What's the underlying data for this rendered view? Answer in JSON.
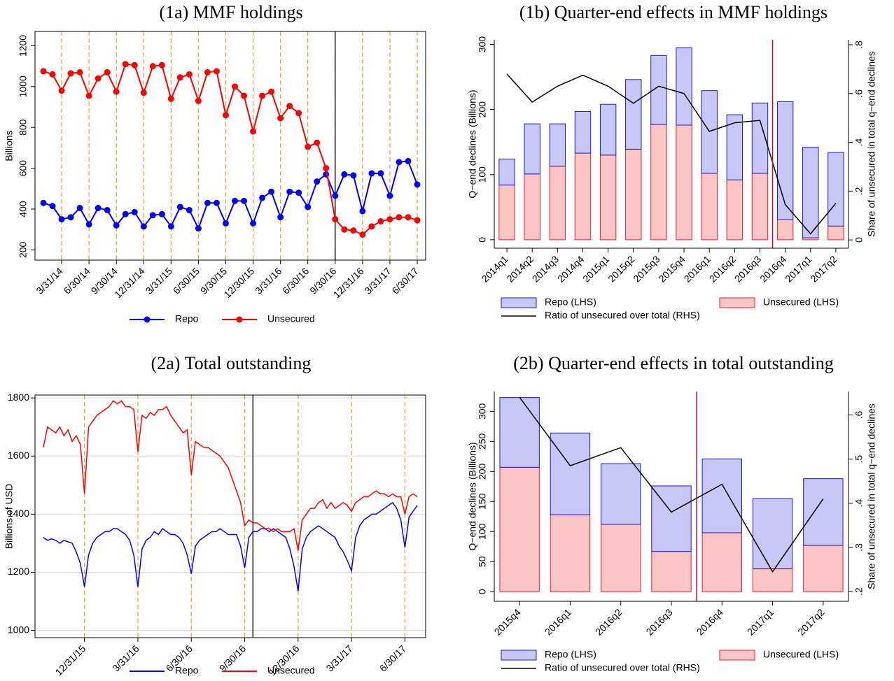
{
  "chart_data": [
    {
      "type": "line",
      "title": "(1a) MMF holdings",
      "ylabel": "Billions",
      "categories": [
        null,
        null,
        "3/31/14",
        null,
        null,
        "6/30/14",
        null,
        null,
        "9/30/14",
        null,
        null,
        "12/31/14",
        null,
        null,
        "3/31/15",
        null,
        null,
        "6/30/15",
        null,
        null,
        "9/30/15",
        null,
        null,
        "12/30/15",
        null,
        null,
        "3/31/16",
        null,
        null,
        "6/30/16",
        null,
        null,
        "9/30/16",
        null,
        null,
        "12/31/16",
        null,
        null,
        "3/31/17",
        null,
        null,
        "6/30/17"
      ],
      "series": [
        {
          "name": "Repo",
          "color": "#0000ff",
          "values": [
            430,
            415,
            350,
            360,
            405,
            325,
            405,
            395,
            320,
            375,
            385,
            315,
            370,
            375,
            315,
            410,
            395,
            305,
            430,
            430,
            330,
            440,
            440,
            330,
            455,
            485,
            360,
            485,
            480,
            410,
            535,
            570,
            465,
            570,
            565,
            390,
            575,
            575,
            465,
            630,
            635,
            520
          ]
        },
        {
          "name": "Unsecured",
          "color": "#ff0000",
          "values": [
            1075,
            1060,
            980,
            1065,
            1070,
            955,
            1040,
            1070,
            975,
            1110,
            1105,
            970,
            1100,
            1105,
            940,
            1045,
            1060,
            930,
            1070,
            1075,
            860,
            1000,
            955,
            780,
            955,
            975,
            845,
            905,
            870,
            705,
            725,
            600,
            350,
            300,
            295,
            275,
            315,
            340,
            350,
            360,
            360,
            345
          ]
        }
      ],
      "ylim": [
        150,
        1270
      ],
      "yticks": [
        200,
        400,
        600,
        800,
        1000,
        1200
      ],
      "grid": false,
      "markers": true,
      "category_lines": {
        "color": "#d9a93a"
      },
      "vline": {
        "index": 32,
        "color": "#000000"
      }
    },
    {
      "type": "bar",
      "title": "(1b) Quarter-end effects in MMF holdings",
      "ylabel": "Q−end declines (Billions)",
      "y2label": "Share of unsecured in total q−end declines",
      "categories": [
        "2014q1",
        "2014q2",
        "2014q3",
        "2014q4",
        "2015q1",
        "2015q2",
        "2015q3",
        "2015q4",
        "2016q1",
        "2016q2",
        "2016q3",
        "2016q4",
        "2017q1",
        "2017q2"
      ],
      "series": [
        {
          "name": "Repo (LHS)",
          "color": "#c8c8f8",
          "edge": "#1a1acc",
          "values": [
            40,
            77,
            65,
            64,
            78,
            107,
            106,
            119,
            127,
            100,
            108,
            181,
            139,
            113
          ]
        },
        {
          "name": "Unsecured (LHS)",
          "color": "#fcc6c6",
          "edge": "#e8202a",
          "values": [
            84,
            101,
            113,
            133,
            130,
            139,
            177,
            176,
            102,
            92,
            102,
            31,
            3,
            21
          ]
        },
        {
          "name": "Ratio of unsecured over total (RHS)",
          "color": "#000000",
          "axis": "y2",
          "values": [
            0.68,
            0.565,
            0.63,
            0.675,
            0.63,
            0.56,
            0.63,
            0.6,
            0.445,
            0.48,
            0.49,
            0.145,
            0.025,
            0.15
          ]
        }
      ],
      "ylim": [
        -13,
        307
      ],
      "yticks": [
        0,
        100,
        200,
        300
      ],
      "y2lim": [
        -0.034,
        0.82
      ],
      "y2ticks": [
        0,
        {
          "value": 0.2,
          "label": ".2"
        },
        {
          "value": 0.4,
          "label": ".4"
        },
        {
          "value": 0.6,
          "label": ".6"
        },
        {
          "value": 0.8,
          "label": ".8"
        }
      ],
      "vline": {
        "after_index": 10,
        "color": "#b0103a"
      }
    },
    {
      "type": "line",
      "title": "(2a) Total outstanding",
      "ylabel": "Billions of USD",
      "categories": [
        null,
        null,
        null,
        null,
        null,
        null,
        null,
        null,
        null,
        null,
        "12/31/15",
        null,
        null,
        null,
        null,
        null,
        null,
        null,
        null,
        null,
        null,
        null,
        null,
        "3/31/16",
        null,
        null,
        null,
        null,
        null,
        null,
        null,
        null,
        null,
        null,
        null,
        null,
        "6/30/16",
        null,
        null,
        null,
        null,
        null,
        null,
        null,
        null,
        null,
        null,
        null,
        null,
        "9/30/16",
        null,
        null,
        null,
        null,
        null,
        null,
        null,
        null,
        null,
        null,
        null,
        null,
        "12/30/16",
        null,
        null,
        null,
        null,
        null,
        null,
        null,
        null,
        null,
        null,
        null,
        null,
        "3/31/17",
        null,
        null,
        null,
        null,
        null,
        null,
        null,
        null,
        null,
        null,
        null,
        null,
        "6/30/17",
        null,
        null,
        null
      ],
      "series": [
        {
          "name": "Repo",
          "color": "#0000ff",
          "values": [
            1320,
            1310,
            1315,
            1310,
            1300,
            1310,
            1305,
            1300,
            1270,
            1230,
            1150,
            1260,
            1300,
            1320,
            1330,
            1340,
            1340,
            1350,
            1350,
            1340,
            1330,
            1310,
            1260,
            1150,
            1280,
            1310,
            1320,
            1340,
            1330,
            1350,
            1340,
            1330,
            1330,
            1320,
            1300,
            1260,
            1195,
            1290,
            1310,
            1320,
            1330,
            1340,
            1340,
            1350,
            1340,
            1330,
            1330,
            1330,
            1290,
            1215,
            1320,
            1340,
            1340,
            1350,
            1350,
            1340,
            1350,
            1340,
            1330,
            1320,
            1280,
            1220,
            1135,
            1280,
            1320,
            1340,
            1350,
            1360,
            1350,
            1340,
            1330,
            1320,
            1290,
            1270,
            1240,
            1205,
            1320,
            1360,
            1380,
            1390,
            1400,
            1400,
            1410,
            1420,
            1430,
            1440,
            1420,
            1380,
            1285,
            1390,
            1410,
            1430
          ]
        },
        {
          "name": "Unsecured",
          "color": "#ff0000",
          "values": [
            1630,
            1700,
            1690,
            1680,
            1700,
            1670,
            1690,
            1650,
            1670,
            1640,
            1470,
            1700,
            1720,
            1740,
            1750,
            1760,
            1770,
            1790,
            1780,
            1790,
            1770,
            1770,
            1760,
            1615,
            1740,
            1730,
            1750,
            1740,
            1760,
            1760,
            1770,
            1740,
            1720,
            1700,
            1680,
            1690,
            1535,
            1650,
            1640,
            1630,
            1630,
            1620,
            1610,
            1600,
            1580,
            1560,
            1520,
            1480,
            1440,
            1360,
            1380,
            1370,
            1370,
            1360,
            1350,
            1350,
            1340,
            1350,
            1340,
            1340,
            1340,
            1350,
            1275,
            1380,
            1400,
            1420,
            1420,
            1440,
            1450,
            1420,
            1440,
            1420,
            1430,
            1440,
            1430,
            1410,
            1440,
            1450,
            1460,
            1460,
            1470,
            1480,
            1470,
            1470,
            1460,
            1470,
            1460,
            1460,
            1400,
            1460,
            1470,
            1460
          ]
        }
      ],
      "ylim": [
        975,
        1810
      ],
      "yticks": [
        1000,
        1200,
        1400,
        1600,
        1800
      ],
      "grid": true,
      "markers": false,
      "category_lines": {
        "color": "#d9a93a"
      },
      "vline": {
        "index": 51,
        "color": "#000000"
      }
    },
    {
      "type": "bar",
      "title": "(2b) Quarter-end effects in total outstanding",
      "ylabel": "Q−end declines (Billions)",
      "y2label": "Share of unsecured in total q−end declines",
      "categories": [
        "2015q4",
        "2016q1",
        "2016q2",
        "2016q3",
        "2016q4",
        "2017q1",
        "2017q2"
      ],
      "series": [
        {
          "name": "Repo (LHS)",
          "color": "#c8c8f8",
          "edge": "#1a1acc",
          "values": [
            116,
            136,
            101,
            109,
            123,
            117,
            111
          ]
        },
        {
          "name": "Unsecured (LHS)",
          "color": "#fcc6c6",
          "edge": "#e8202a",
          "values": [
            207,
            128,
            112,
            67,
            98,
            38,
            77
          ]
        },
        {
          "name": "Ratio of unsecured over total (RHS)",
          "color": "#000000",
          "axis": "y2",
          "values": [
            0.64,
            0.485,
            0.526,
            0.38,
            0.443,
            0.245,
            0.41
          ]
        }
      ],
      "ylim": [
        -16,
        333
      ],
      "yticks": [
        0,
        50,
        100,
        150,
        200,
        250,
        300
      ],
      "y2lim": [
        0.178,
        0.653
      ],
      "y2ticks": [
        {
          "value": 0.2,
          "label": ".2"
        },
        {
          "value": 0.3,
          "label": ".3"
        },
        {
          "value": 0.4,
          "label": ".4"
        },
        {
          "value": 0.5,
          "label": ".5"
        },
        {
          "value": 0.6,
          "label": ".6"
        }
      ],
      "vline": {
        "after_index": 3,
        "color": "#b0103a"
      }
    }
  ]
}
